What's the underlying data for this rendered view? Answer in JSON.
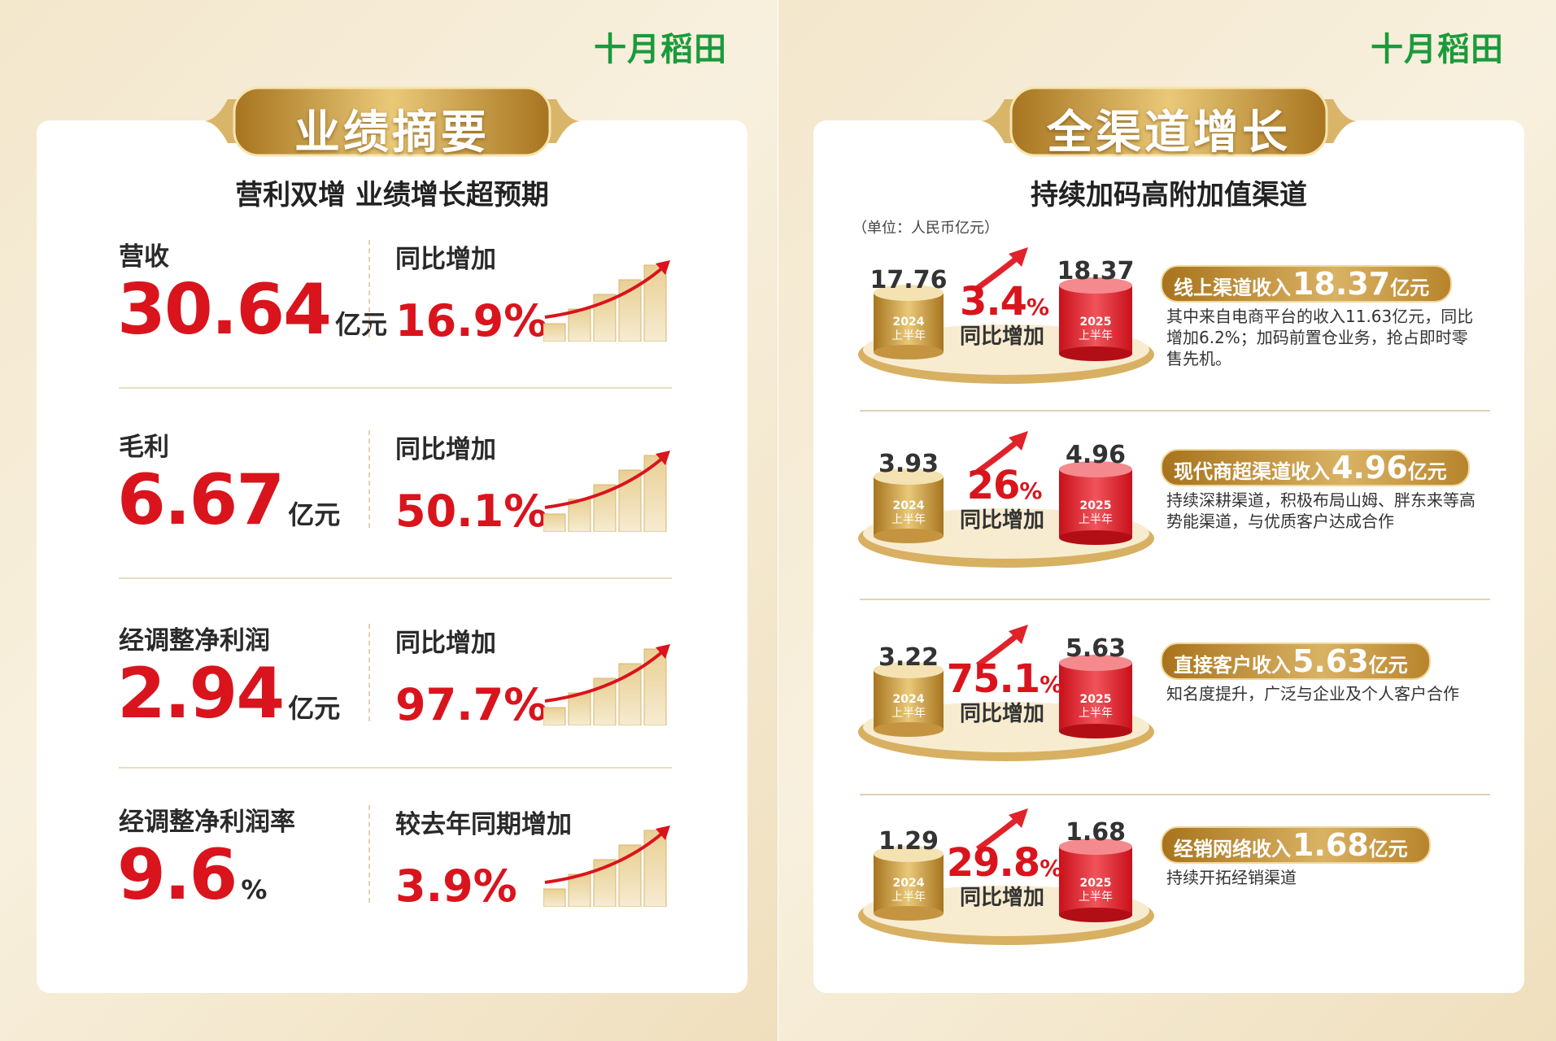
{
  "left": {
    "brand": "十月稻田",
    "title": "业绩摘要",
    "subtitle": "营利双增  业绩增长超预期",
    "metrics": [
      {
        "label": "营收",
        "value": "30.64",
        "unit": "亿元",
        "change_label": "同比增加",
        "change": "16.9%"
      },
      {
        "label": "毛利",
        "value": "6.67",
        "unit": "亿元",
        "change_label": "同比增加",
        "change": "50.1%"
      },
      {
        "label": "经调整净利润",
        "value": "2.94",
        "unit": "亿元",
        "change_label": "同比增加",
        "change": "97.7%"
      },
      {
        "label": "经调整净利润率",
        "value": "9.6",
        "unit": "%",
        "change_label": "较去年同期增加",
        "change": "3.9%"
      }
    ]
  },
  "right": {
    "brand": "十月稻田",
    "title": "全渠道增长",
    "subtitle": "持续加码高附加值渠道",
    "unit_note": "（单位：人民币亿元）",
    "channels": [
      {
        "value_2024": "17.76",
        "year_2024": "2024",
        "half_2024": "上半年",
        "growth": "3.4",
        "growth_unit": "%",
        "growth_label": "同比增加",
        "value_2025": "18.37",
        "year_2025": "2025",
        "half_2025": "上半年",
        "headline": "线上渠道收入",
        "headline_value": "18.37",
        "headline_unit": "亿元",
        "description": "其中来自电商平台的收入11.63亿元，同比增加6.2%；加码前置仓业务，抢占即时零售先机。"
      },
      {
        "value_2024": "3.93",
        "year_2024": "2024",
        "half_2024": "上半年",
        "growth": "26",
        "growth_unit": "%",
        "growth_label": "同比增加",
        "value_2025": "4.96",
        "year_2025": "2025",
        "half_2025": "上半年",
        "headline": "现代商超渠道收入",
        "headline_value": "4.96",
        "headline_unit": "亿元",
        "description": "持续深耕渠道，积极布局山姆、胖东来等高势能渠道，与优质客户达成合作"
      },
      {
        "value_2024": "3.22",
        "year_2024": "2024",
        "half_2024": "上半年",
        "growth": "75.1",
        "growth_unit": "%",
        "growth_label": "同比增加",
        "value_2025": "5.63",
        "year_2025": "2025",
        "half_2025": "上半年",
        "headline": "直接客户收入",
        "headline_value": "5.63",
        "headline_unit": "亿元",
        "description": "知名度提升，广泛与企业及个人客户合作"
      },
      {
        "value_2024": "1.29",
        "year_2024": "2024",
        "half_2024": "上半年",
        "growth": "29.8",
        "growth_unit": "%",
        "growth_label": "同比增加",
        "value_2025": "1.68",
        "year_2025": "2025",
        "half_2025": "上半年",
        "headline": "经销网络收入",
        "headline_value": "1.68",
        "headline_unit": "亿元",
        "description": "持续开拓经销渠道"
      }
    ]
  }
}
